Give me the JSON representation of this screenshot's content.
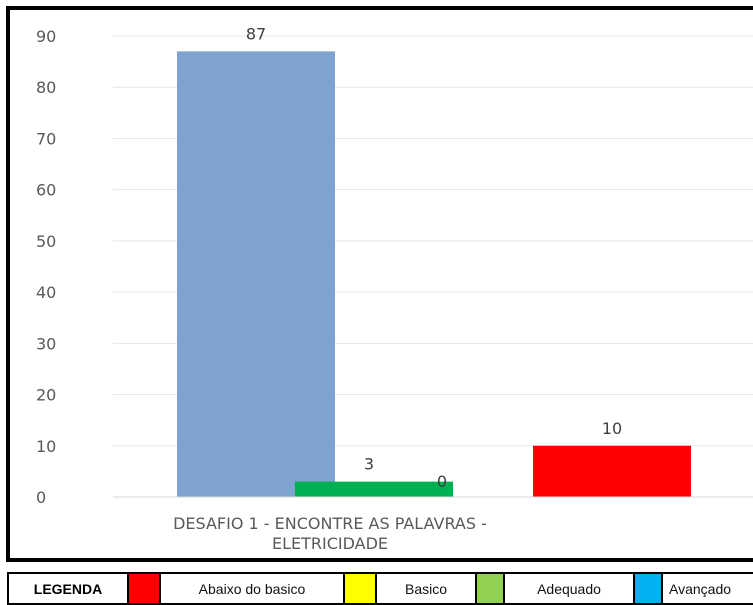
{
  "chart_data": {
    "type": "bar",
    "categories": [
      "DESAFIO 1 - ENCONTRE AS PALAVRAS - ELETRICIDADE"
    ],
    "xlabel_lines": [
      "DESAFIO 1 - ENCONTRE AS PALAVRAS -",
      "ELETRICIDADE"
    ],
    "series": [
      {
        "values": [
          87
        ],
        "color": "#7FA3CF"
      },
      {
        "values": [
          3
        ],
        "color": "#00B050"
      },
      {
        "values": [
          0
        ],
        "color": "#FFFF00"
      },
      {
        "values": [
          10
        ],
        "color": "#FF0000"
      }
    ],
    "ylim": [
      0,
      90
    ],
    "yticks": [
      "0",
      "10",
      "20",
      "30",
      "40",
      "50",
      "60",
      "70",
      "80",
      "90"
    ],
    "grid": true
  },
  "legend": {
    "title": "LEGENDA",
    "items": [
      {
        "label": "Abaixo  do basico",
        "color": "#FF0000"
      },
      {
        "label": "Basico",
        "color": "#FFFF00"
      },
      {
        "label": "Adequado",
        "color": "#92D050"
      },
      {
        "label": "Avançado",
        "color": "#00B0F0"
      }
    ]
  }
}
